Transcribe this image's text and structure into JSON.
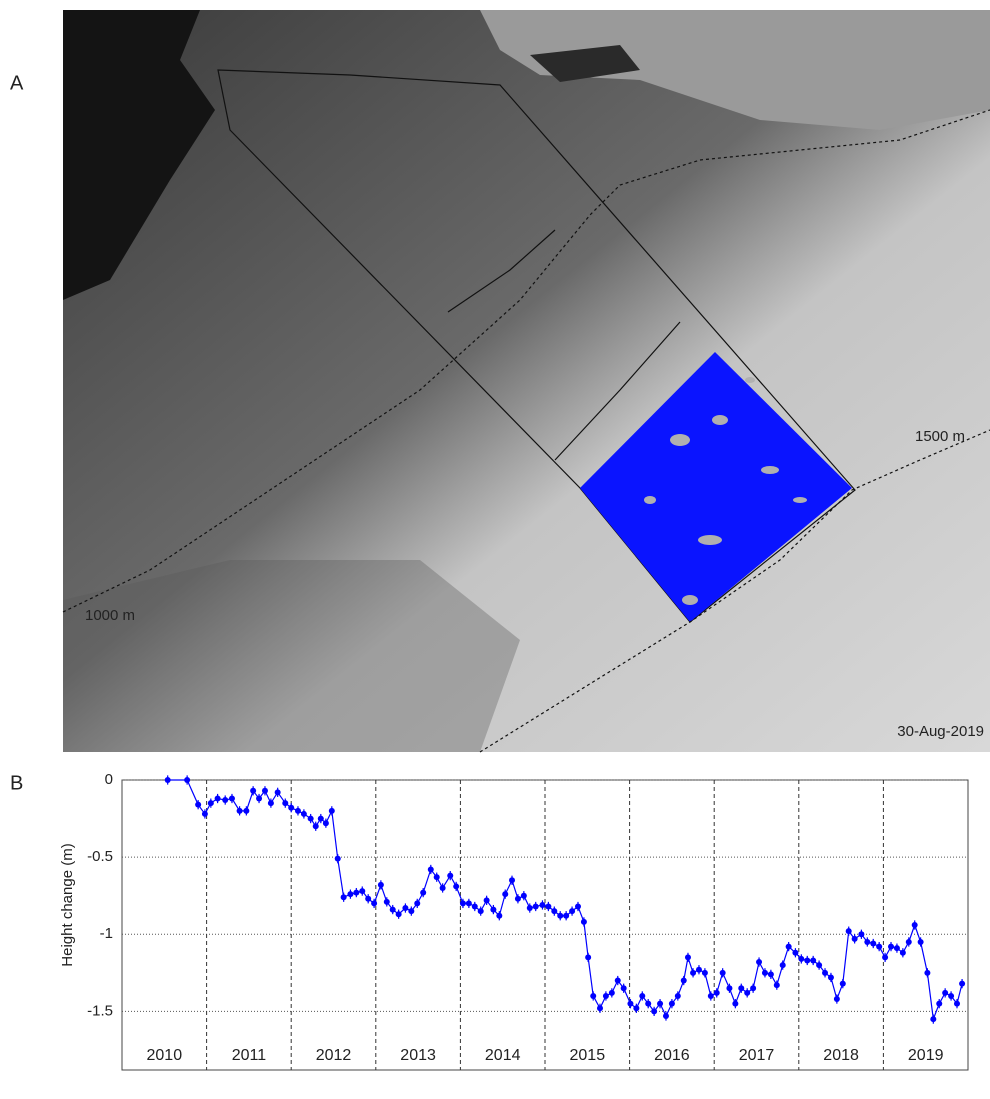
{
  "figure": {
    "panels": [
      {
        "label": "A",
        "annotations": [
          "1500 m",
          "1000 m",
          "30-Aug-2019"
        ]
      },
      {
        "label": "B"
      }
    ]
  },
  "chart_data": {
    "type": "line",
    "y_label": "Height change (m)",
    "xlim": [
      2010,
      2020
    ],
    "ylim": [
      -1.88,
      0
    ],
    "yticks": [
      0,
      -0.5,
      -1,
      -1.5
    ],
    "xticks": [
      {
        "value": 2010.5,
        "label": "2010"
      },
      {
        "value": 2011.5,
        "label": "2011"
      },
      {
        "value": 2012.5,
        "label": "2012"
      },
      {
        "value": 2013.5,
        "label": "2013"
      },
      {
        "value": 2014.5,
        "label": "2014"
      },
      {
        "value": 2015.5,
        "label": "2015"
      },
      {
        "value": 2016.5,
        "label": "2016"
      },
      {
        "value": 2017.5,
        "label": "2017"
      },
      {
        "value": 2018.5,
        "label": "2018"
      },
      {
        "value": 2019.5,
        "label": "2019"
      }
    ],
    "x_grid": [
      2011,
      2012,
      2013,
      2014,
      2015,
      2016,
      2017,
      2018,
      2019
    ],
    "grid": true,
    "series": [
      {
        "color": "#0000ff",
        "error": 0.03,
        "x": [
          2010.54,
          2010.77,
          2010.9,
          2010.98,
          2011.05,
          2011.13,
          2011.22,
          2011.3,
          2011.39,
          2011.47,
          2011.55,
          2011.62,
          2011.69,
          2011.76,
          2011.84,
          2011.93,
          2012.0,
          2012.08,
          2012.15,
          2012.23,
          2012.29,
          2012.35,
          2012.41,
          2012.48,
          2012.55,
          2012.62,
          2012.7,
          2012.77,
          2012.84,
          2012.91,
          2012.98,
          2013.06,
          2013.13,
          2013.2,
          2013.27,
          2013.35,
          2013.42,
          2013.49,
          2013.56,
          2013.65,
          2013.72,
          2013.79,
          2013.88,
          2013.95,
          2014.03,
          2014.1,
          2014.17,
          2014.24,
          2014.31,
          2014.39,
          2014.46,
          2014.53,
          2014.61,
          2014.68,
          2014.75,
          2014.82,
          2014.89,
          2014.97,
          2015.04,
          2015.11,
          2015.18,
          2015.25,
          2015.32,
          2015.39,
          2015.46,
          2015.51,
          2015.57,
          2015.65,
          2015.72,
          2015.79,
          2015.86,
          2015.93,
          2016.01,
          2016.08,
          2016.15,
          2016.22,
          2016.29,
          2016.36,
          2016.43,
          2016.5,
          2016.57,
          2016.64,
          2016.69,
          2016.75,
          2016.82,
          2016.89,
          2016.96,
          2017.03,
          2017.1,
          2017.18,
          2017.25,
          2017.32,
          2017.39,
          2017.46,
          2017.53,
          2017.6,
          2017.67,
          2017.74,
          2017.81,
          2017.88,
          2017.96,
          2018.03,
          2018.1,
          2018.17,
          2018.24,
          2018.31,
          2018.38,
          2018.45,
          2018.52,
          2018.59,
          2018.66,
          2018.74,
          2018.81,
          2018.88,
          2018.95,
          2019.02,
          2019.09,
          2019.16,
          2019.23,
          2019.3,
          2019.37,
          2019.44,
          2019.52,
          2019.59,
          2019.66,
          2019.73,
          2019.8,
          2019.87,
          2019.93
        ],
        "values": [
          0,
          0,
          -0.16,
          -0.22,
          -0.15,
          -0.12,
          -0.13,
          -0.12,
          -0.2,
          -0.2,
          -0.07,
          -0.12,
          -0.07,
          -0.15,
          -0.08,
          -0.15,
          -0.18,
          -0.2,
          -0.22,
          -0.25,
          -0.3,
          -0.25,
          -0.28,
          -0.2,
          -0.51,
          -0.76,
          -0.74,
          -0.73,
          -0.72,
          -0.77,
          -0.8,
          -0.68,
          -0.79,
          -0.84,
          -0.87,
          -0.83,
          -0.85,
          -0.8,
          -0.73,
          -0.58,
          -0.63,
          -0.7,
          -0.62,
          -0.69,
          -0.8,
          -0.8,
          -0.82,
          -0.85,
          -0.78,
          -0.84,
          -0.88,
          -0.74,
          -0.65,
          -0.77,
          -0.75,
          -0.83,
          -0.82,
          -0.81,
          -0.82,
          -0.85,
          -0.88,
          -0.88,
          -0.85,
          -0.82,
          -0.92,
          -1.15,
          -1.4,
          -1.48,
          -1.4,
          -1.38,
          -1.3,
          -1.35,
          -1.45,
          -1.48,
          -1.4,
          -1.45,
          -1.5,
          -1.45,
          -1.53,
          -1.45,
          -1.4,
          -1.3,
          -1.15,
          -1.25,
          -1.23,
          -1.25,
          -1.4,
          -1.38,
          -1.25,
          -1.35,
          -1.45,
          -1.35,
          -1.38,
          -1.35,
          -1.18,
          -1.25,
          -1.26,
          -1.33,
          -1.2,
          -1.08,
          -1.12,
          -1.16,
          -1.17,
          -1.17,
          -1.2,
          -1.25,
          -1.28,
          -1.42,
          -1.32,
          -0.98,
          -1.03,
          -1.0,
          -1.05,
          -1.06,
          -1.08,
          -1.15,
          -1.08,
          -1.09,
          -1.12,
          -1.05,
          -0.94,
          -1.05,
          -1.25,
          -1.55,
          -1.45,
          -1.38,
          -1.4,
          -1.45,
          -1.32
        ]
      }
    ]
  }
}
